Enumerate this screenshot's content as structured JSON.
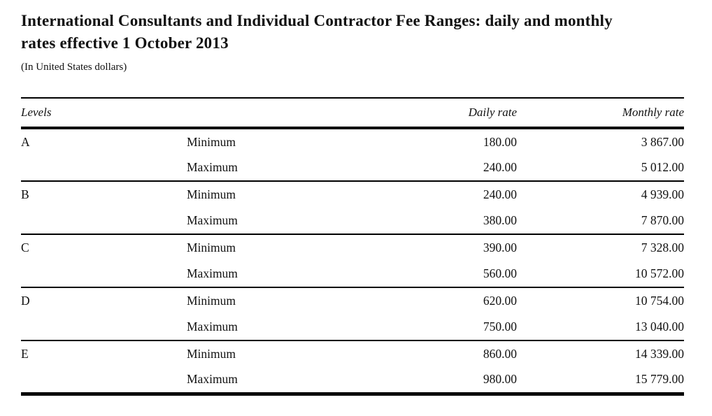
{
  "page": {
    "title": "International Consultants and Individual Contractor Fee Ranges: daily and monthly rates effective 1 October 2013",
    "subtitle": "(In United States dollars)"
  },
  "table": {
    "columns": {
      "levels": "Levels",
      "daily_rate": "Daily rate",
      "monthly_rate": "Monthly rate"
    },
    "groups": [
      {
        "level": "A",
        "rows": [
          {
            "label": "Minimum",
            "daily": "180.00",
            "monthly": "3 867.00"
          },
          {
            "label": "Maximum",
            "daily": "240.00",
            "monthly": "5 012.00"
          }
        ]
      },
      {
        "level": "B",
        "rows": [
          {
            "label": "Minimum",
            "daily": "240.00",
            "monthly": "4 939.00"
          },
          {
            "label": "Maximum",
            "daily": "380.00",
            "monthly": "7 870.00"
          }
        ]
      },
      {
        "level": "C",
        "rows": [
          {
            "label": "Minimum",
            "daily": "390.00",
            "monthly": "7 328.00"
          },
          {
            "label": "Maximum",
            "daily": "560.00",
            "monthly": "10 572.00"
          }
        ]
      },
      {
        "level": "D",
        "rows": [
          {
            "label": "Minimum",
            "daily": "620.00",
            "monthly": "10 754.00"
          },
          {
            "label": "Maximum",
            "daily": "750.00",
            "monthly": "13 040.00"
          }
        ]
      },
      {
        "level": "E",
        "rows": [
          {
            "label": "Minimum",
            "daily": "860.00",
            "monthly": "14 339.00"
          },
          {
            "label": "Maximum",
            "daily": "980.00",
            "monthly": "15 779.00"
          }
        ]
      }
    ]
  },
  "colors": {
    "background": "#ffffff",
    "text": "#111111",
    "rule": "#000000"
  }
}
